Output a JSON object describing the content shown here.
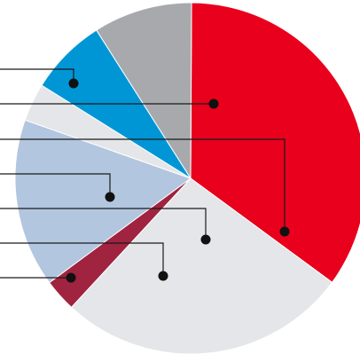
{
  "chart_data": {
    "type": "pie",
    "title": "",
    "start_angle_deg": 0.3,
    "direction": "clockwise",
    "legend": "none",
    "grid": false,
    "slices": [
      {
        "label": "",
        "value": 35.0,
        "color": "#e8001c"
      },
      {
        "label": "",
        "value": 26.8,
        "color": "#e4e6e9"
      },
      {
        "label": "",
        "value": 3.0,
        "color": "#a0233f"
      },
      {
        "label": "",
        "value": 15.5,
        "color": "#b3c6df"
      },
      {
        "label": "",
        "value": 3.5,
        "color": "#e4e6e9"
      },
      {
        "label": "",
        "value": 7.1,
        "color": "#0096d6"
      },
      {
        "label": "",
        "value": 9.1,
        "color": "#a7a9ac"
      }
    ],
    "callouts": [
      {
        "slice": 6
      },
      {
        "slice": 0
      },
      {
        "slice": 1
      },
      {
        "slice": 5
      },
      {
        "slice": 2
      },
      {
        "slice": 3
      },
      {
        "slice": 4
      }
    ]
  }
}
